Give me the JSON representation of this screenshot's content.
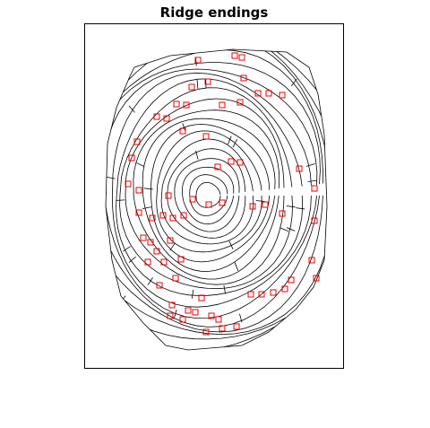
{
  "figure": {
    "title": "Ridge endings"
  }
}
